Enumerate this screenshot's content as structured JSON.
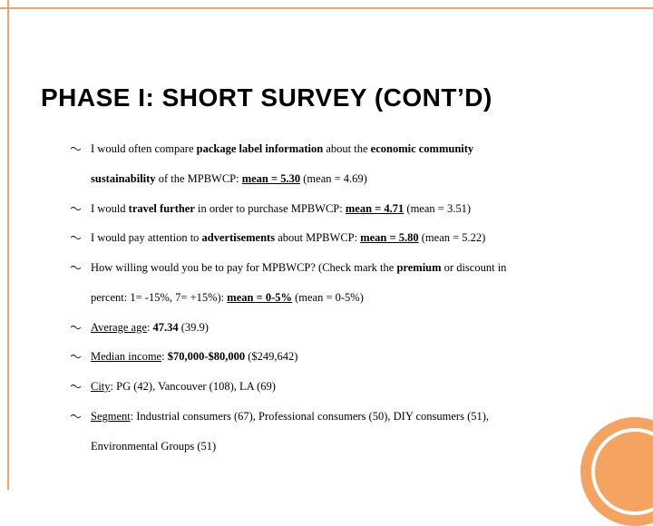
{
  "colors": {
    "accent": "#f4a460",
    "background": "#ffffff",
    "text": "#000000"
  },
  "title": "PHASE I: SHORT SURVEY (CONT’D)",
  "bullets": [
    {
      "html": "I would often compare <b>package label information</b> about the <b>economic community</b><span class='wrap-line'><b>sustainability</b> of the MPBWCP: <u><b>mean = 5.30</b></u> (mean = 4.69)</span>"
    },
    {
      "html": "I would <b>travel further</b> in order to purchase MPBWCP: <u><b>mean = 4.71</b></u> (mean = 3.51)"
    },
    {
      "html": "I would pay attention to <b>advertisements</b> about MPBWCP: <u><b>mean = 5.80</b></u> (mean = 5.22)"
    },
    {
      "html": "How willing would you be to pay for MPBWCP?  (Check mark the <b>premium</b> or discount in<span class='wrap-line'>percent: 1= -15%, 7= +15%): <u><b>mean = 0-5%</b></u> (mean = 0-5%)</span>"
    },
    {
      "html": "<u>Average age</u>: <b>47.34</b> (39.9)"
    },
    {
      "html": "<u>Median income</u>: <b>$70,000-$80,000</b> ($249,642)"
    },
    {
      "html": "<u>City</u>: PG (42), Vancouver (108), LA (69)"
    },
    {
      "html": "<u>Segment</u>: Industrial consumers (67), Professional consumers (50), DIY consumers (51),<span class='wrap-line'>Environmental Groups (51)</span>"
    }
  ]
}
